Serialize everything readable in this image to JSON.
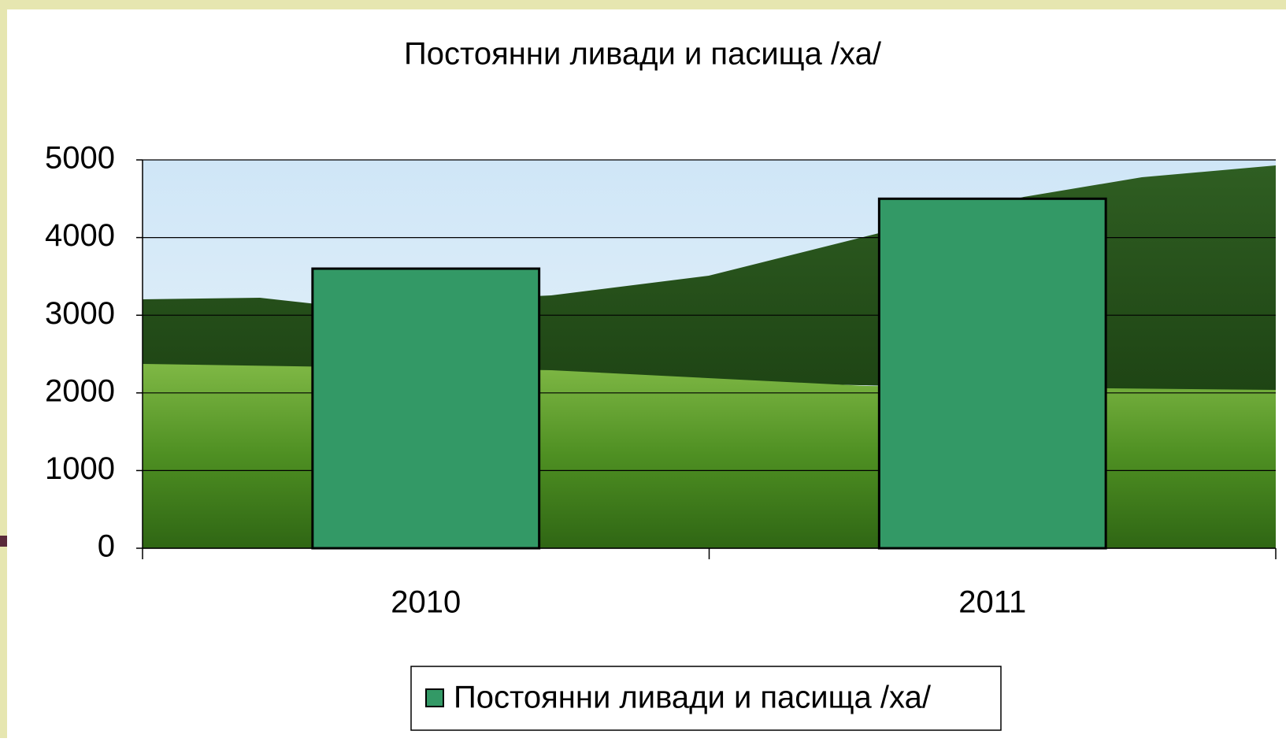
{
  "chart_data": {
    "type": "bar",
    "title": "Постоянни ливади и пасища /ха/",
    "categories": [
      "2010",
      "2011"
    ],
    "series": [
      {
        "name": "Постоянни ливади и пасища /ха/",
        "color": "#339966",
        "values": [
          3600,
          4500
        ]
      }
    ],
    "ylim": [
      0,
      5000
    ],
    "yticks": [
      0,
      1000,
      2000,
      3000,
      4000,
      5000
    ],
    "grid": true,
    "legend": "bottom"
  }
}
